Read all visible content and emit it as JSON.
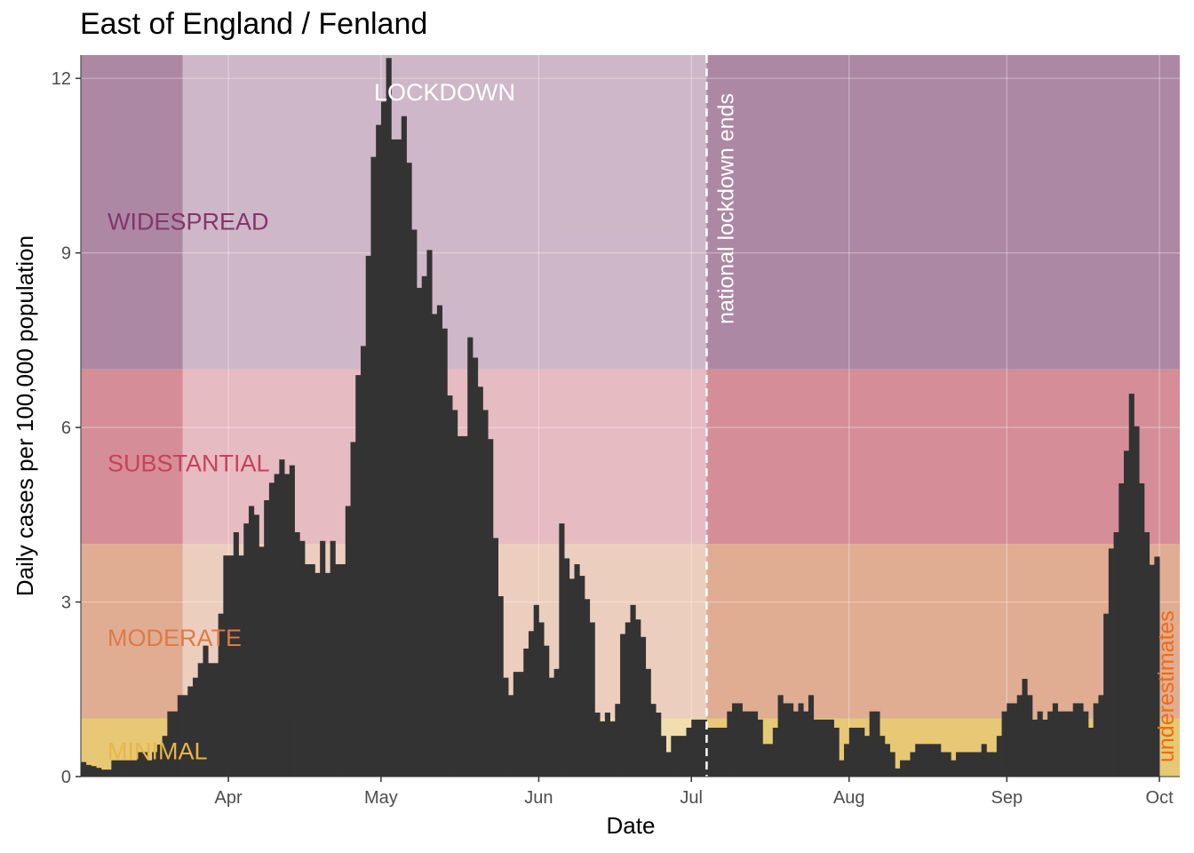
{
  "chart_data": {
    "type": "bar",
    "title": "East of England / Fenland",
    "xlabel": "Date",
    "ylabel": "Daily cases per 100,000 population",
    "x_start": "2020-03-03",
    "x_end": "2020-10-04",
    "ylim": [
      0,
      12.4
    ],
    "y_ticks": [
      0,
      3,
      6,
      9,
      12
    ],
    "x_ticks": [
      {
        "label": "Apr",
        "date": "2020-04-01"
      },
      {
        "label": "May",
        "date": "2020-05-01"
      },
      {
        "label": "Jun",
        "date": "2020-06-01"
      },
      {
        "label": "Jul",
        "date": "2020-07-01"
      },
      {
        "label": "Aug",
        "date": "2020-08-01"
      },
      {
        "label": "Sep",
        "date": "2020-09-01"
      },
      {
        "label": "Oct",
        "date": "2020-10-01"
      }
    ],
    "bands": [
      {
        "label": "MINIMAL",
        "from": 0,
        "to": 1,
        "color": "#e6c875",
        "text_color": "#e8b64a"
      },
      {
        "label": "MODERATE",
        "from": 1,
        "to": 4,
        "color": "#e0ad93",
        "text_color": "#de7a45"
      },
      {
        "label": "SUBSTANTIAL",
        "from": 4,
        "to": 7,
        "color": "#d58e98",
        "text_color": "#c9405c"
      },
      {
        "label": "WIDESPREAD",
        "from": 7,
        "to": 12.4,
        "color": "#ad88a4",
        "text_color": "#83356c"
      }
    ],
    "lockdown": {
      "label": "LOCKDOWN",
      "start": "2020-03-23",
      "end": "2020-07-04"
    },
    "lockdown_end_line": {
      "label": "national lockdown ends",
      "date": "2020-07-04"
    },
    "underestimates_label": "underestimates",
    "bar_color": "#333333",
    "values": [
      0.25,
      0.2,
      0.18,
      0.15,
      0.12,
      0.12,
      0.28,
      0.28,
      0.28,
      0.28,
      0.28,
      0.42,
      0.42,
      0.28,
      0.42,
      0.55,
      0.7,
      1.12,
      1.12,
      1.4,
      1.4,
      1.55,
      1.7,
      1.95,
      2.25,
      1.95,
      1.95,
      2.8,
      3.8,
      3.8,
      4.2,
      3.8,
      4.35,
      4.65,
      4.5,
      3.95,
      4.75,
      5.05,
      5.2,
      5.45,
      5.2,
      5.35,
      4.2,
      4.05,
      3.65,
      3.65,
      3.5,
      4.05,
      3.5,
      4.05,
      3.65,
      3.65,
      4.65,
      5.75,
      6.9,
      7.4,
      8.95,
      10.65,
      11.2,
      11.6,
      12.35,
      10.95,
      10.95,
      11.35,
      10.55,
      9.4,
      8.4,
      8.6,
      9.05,
      7.95,
      8.1,
      7.7,
      6.55,
      6.3,
      5.85,
      5.85,
      7.55,
      7.2,
      6.7,
      6.3,
      5.8,
      4.1,
      3.1,
      1.7,
      1.4,
      1.8,
      1.8,
      2.2,
      2.5,
      2.95,
      2.65,
      2.25,
      1.7,
      1.85,
      4.35,
      3.75,
      3.4,
      3.65,
      3.45,
      3.05,
      2.65,
      1.1,
      0.95,
      1.1,
      0.95,
      1.25,
      2.45,
      2.65,
      2.95,
      2.7,
      2.4,
      1.85,
      1.25,
      1.1,
      0.7,
      0.42,
      0.7,
      0.7,
      0.7,
      0.84,
      0.98,
      0.98,
      0.98,
      0.84,
      0.84,
      0.84,
      0.84,
      1.12,
      1.26,
      1.26,
      1.12,
      1.12,
      1.12,
      0.98,
      0.56,
      0.56,
      0.84,
      1.4,
      1.26,
      1.26,
      1.12,
      1.26,
      1.12,
      1.4,
      0.98,
      0.98,
      0.98,
      0.98,
      0.84,
      0.28,
      0.56,
      0.84,
      0.84,
      0.84,
      0.7,
      1.12,
      1.12,
      0.7,
      0.56,
      0.42,
      0.14,
      0.28,
      0.28,
      0.42,
      0.56,
      0.56,
      0.56,
      0.56,
      0.56,
      0.42,
      0.42,
      0.28,
      0.42,
      0.42,
      0.42,
      0.42,
      0.42,
      0.56,
      0.42,
      0.42,
      0.7,
      1.12,
      1.26,
      1.26,
      1.4,
      1.68,
      1.4,
      0.98,
      1.12,
      0.98,
      1.12,
      1.26,
      1.12,
      1.12,
      1.12,
      1.26,
      1.26,
      1.12,
      0.84,
      1.26,
      1.4,
      2.8,
      3.92,
      4.2,
      5.04,
      5.6,
      6.58,
      6.02,
      5.04,
      4.2,
      3.64,
      3.78
    ]
  }
}
